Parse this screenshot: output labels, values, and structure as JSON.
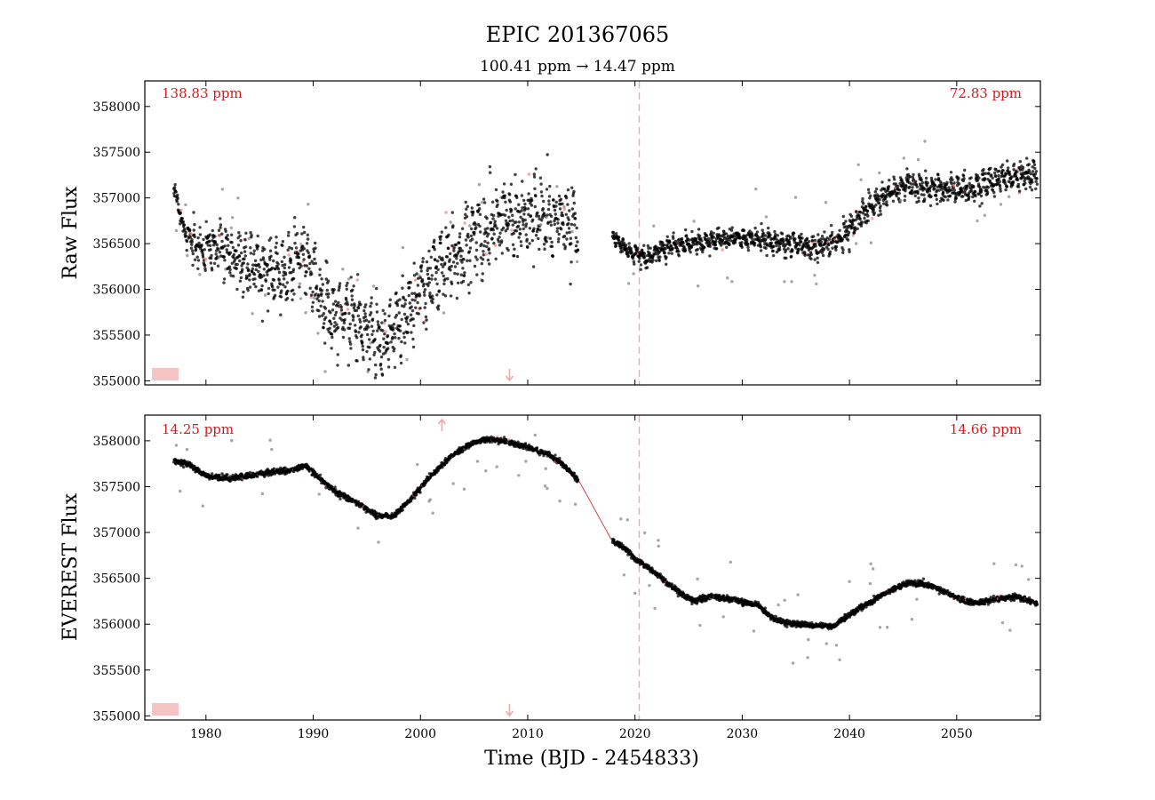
{
  "title": "EPIC 201367065",
  "subtitle": "100.41 ppm → 14.47 ppm",
  "xlabel": "Time (BJD - 2454833)",
  "colors": {
    "points": "#000000",
    "outliers": "#808080",
    "masked": "#f08080",
    "model": "#d7191c",
    "breakpoint": "#f4a6a6",
    "annotation": "#d7191c",
    "legend_patch": "#f6c4c4"
  },
  "chart_data": [
    {
      "type": "scatter",
      "panel": "top",
      "ylabel": "Raw Flux",
      "xlim": [
        1974.3,
        2057.8
      ],
      "ylim": [
        354955,
        358280
      ],
      "xticks": [
        1980,
        1990,
        2000,
        2010,
        2020,
        2030,
        2040,
        2050
      ],
      "xtick_labels": [],
      "yticks": [
        355000,
        355500,
        356000,
        356500,
        357000,
        357500,
        358000
      ],
      "ytick_labels": [
        "355000",
        "355500",
        "356000",
        "356500",
        "357000",
        "357500",
        "358000"
      ],
      "annotations": [
        "138.83 ppm",
        "72.83 ppm"
      ],
      "breakpoint_x": 2020.4,
      "arrow_markers": [
        {
          "x": 2008.3,
          "direction": "down"
        }
      ],
      "x_range": [
        1977.0,
        2057.5
      ],
      "gap": [
        2014.7,
        2017.9
      ],
      "trend_knots": [
        [
          1977.0,
          357100
        ],
        [
          1978.0,
          356650
        ],
        [
          1979.5,
          356400
        ],
        [
          1981.5,
          356500
        ],
        [
          1983.0,
          356300
        ],
        [
          1985.0,
          356250
        ],
        [
          1987.0,
          356150
        ],
        [
          1989.0,
          356450
        ],
        [
          1991.0,
          355800
        ],
        [
          1993.5,
          355700
        ],
        [
          1996.5,
          355400
        ],
        [
          1999.0,
          355800
        ],
        [
          2001.0,
          356100
        ],
        [
          2003.0,
          356350
        ],
        [
          2006.0,
          356650
        ],
        [
          2009.0,
          356800
        ],
        [
          2012.0,
          356800
        ],
        [
          2014.7,
          356700
        ],
        [
          2017.9,
          356600
        ],
        [
          2019.5,
          356400
        ],
        [
          2021.0,
          356350
        ],
        [
          2023.0,
          356450
        ],
        [
          2025.0,
          356500
        ],
        [
          2028.0,
          356550
        ],
        [
          2031.0,
          356550
        ],
        [
          2034.0,
          356500
        ],
        [
          2037.0,
          356450
        ],
        [
          2039.0,
          356550
        ],
        [
          2041.0,
          356800
        ],
        [
          2043.0,
          357000
        ],
        [
          2045.0,
          357150
        ],
        [
          2048.0,
          357100
        ],
        [
          2051.0,
          357100
        ],
        [
          2054.0,
          357200
        ],
        [
          2057.5,
          357250
        ]
      ],
      "scatter_amplitude_knots": [
        [
          1977.0,
          80
        ],
        [
          1980.0,
          300
        ],
        [
          1990.0,
          420
        ],
        [
          2000.0,
          450
        ],
        [
          2014.7,
          430
        ],
        [
          2018.0,
          80
        ],
        [
          2022.0,
          120
        ],
        [
          2030.0,
          120
        ],
        [
          2040.0,
          150
        ],
        [
          2057.5,
          170
        ]
      ]
    },
    {
      "type": "scatter",
      "panel": "bottom",
      "ylabel": "EVEREST Flux",
      "xlim": [
        1974.3,
        2057.8
      ],
      "ylim": [
        354955,
        358280
      ],
      "xticks": [
        1980,
        1990,
        2000,
        2010,
        2020,
        2030,
        2040,
        2050
      ],
      "xtick_labels": [
        "1980",
        "1990",
        "2000",
        "2010",
        "2020",
        "2030",
        "2040",
        "2050"
      ],
      "yticks": [
        355000,
        355500,
        356000,
        356500,
        357000,
        357500,
        358000
      ],
      "ytick_labels": [
        "355000",
        "355500",
        "356000",
        "356500",
        "357000",
        "357500",
        "358000"
      ],
      "annotations": [
        "14.25 ppm",
        "14.66 ppm"
      ],
      "breakpoint_x": 2020.4,
      "arrow_markers": [
        {
          "x": 2002.0,
          "direction": "up"
        },
        {
          "x": 2008.3,
          "direction": "down"
        }
      ],
      "x_range": [
        1977.0,
        2057.5
      ],
      "gap": [
        2014.7,
        2017.9
      ],
      "trend_knots": [
        [
          1977.0,
          357780
        ],
        [
          1978.5,
          357740
        ],
        [
          1980.0,
          357620
        ],
        [
          1982.0,
          357590
        ],
        [
          1984.0,
          357620
        ],
        [
          1986.0,
          357660
        ],
        [
          1988.0,
          357680
        ],
        [
          1989.3,
          357730
        ],
        [
          1990.5,
          357600
        ],
        [
          1992.0,
          357450
        ],
        [
          1994.0,
          357330
        ],
        [
          1996.0,
          357180
        ],
        [
          1997.5,
          357180
        ],
        [
          1999.0,
          357350
        ],
        [
          2001.0,
          357620
        ],
        [
          2003.0,
          357850
        ],
        [
          2005.0,
          357980
        ],
        [
          2006.5,
          358020
        ],
        [
          2008.0,
          357990
        ],
        [
          2010.0,
          357930
        ],
        [
          2012.0,
          357850
        ],
        [
          2013.5,
          357720
        ],
        [
          2014.7,
          357580
        ],
        [
          2017.9,
          356900
        ],
        [
          2018.5,
          356880
        ],
        [
          2020.0,
          356720
        ],
        [
          2022.0,
          356550
        ],
        [
          2024.0,
          356350
        ],
        [
          2025.5,
          356250
        ],
        [
          2027.0,
          356300
        ],
        [
          2028.5,
          356280
        ],
        [
          2030.0,
          356250
        ],
        [
          2031.5,
          356200
        ],
        [
          2033.0,
          356050
        ],
        [
          2035.0,
          356000
        ],
        [
          2037.0,
          355980
        ],
        [
          2038.5,
          355980
        ],
        [
          2040.0,
          356100
        ],
        [
          2042.0,
          356250
        ],
        [
          2044.0,
          356380
        ],
        [
          2045.5,
          356450
        ],
        [
          2047.0,
          356440
        ],
        [
          2049.0,
          356350
        ],
        [
          2050.5,
          356260
        ],
        [
          2052.0,
          356230
        ],
        [
          2054.0,
          356280
        ],
        [
          2055.5,
          356300
        ],
        [
          2057.5,
          356230
        ]
      ],
      "scatter_amplitude_knots": [
        [
          1977.0,
          25
        ],
        [
          2057.5,
          25
        ]
      ]
    }
  ]
}
